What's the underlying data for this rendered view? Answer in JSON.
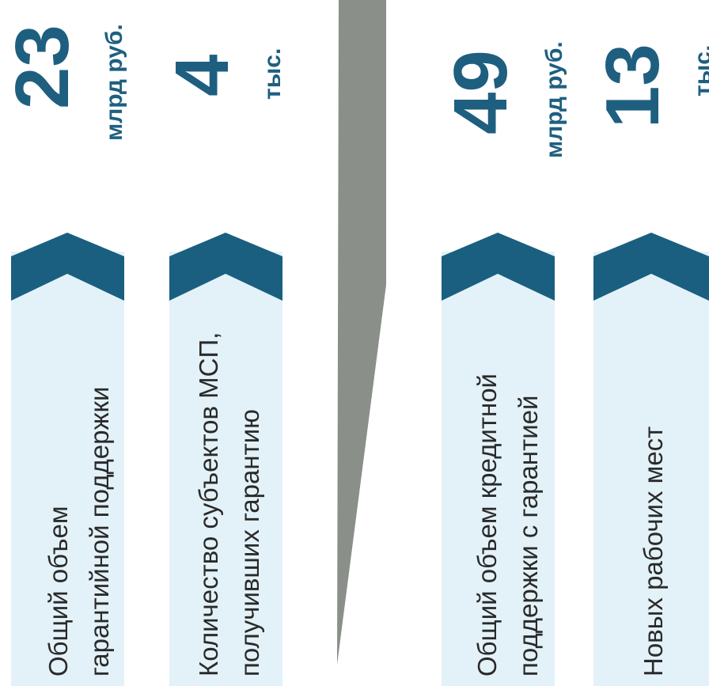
{
  "colors": {
    "band": "#e3f2f8",
    "chevron": "#1a5f7f",
    "value_text": "#1e5f80",
    "label_text": "#2a2a2a",
    "arrow": "#8a8f89"
  },
  "before": {
    "items": [
      {
        "label_line1": "Общий объем",
        "label_line2": "гарантийной поддержки",
        "value": "23",
        "unit": "млрд руб."
      },
      {
        "label_line1": "Количество субъектов МСП,",
        "label_line2": "получивших гарантию",
        "value": "4",
        "unit": "тыс."
      }
    ]
  },
  "after": {
    "items": [
      {
        "label_line1": "Общий объем кредитной",
        "label_line2": "поддержки с гарантией",
        "value": "49",
        "unit": "млрд руб."
      },
      {
        "label_line1": "Новых рабочих мест",
        "label_line2": "",
        "value": "13",
        "unit": "тыс."
      }
    ]
  }
}
